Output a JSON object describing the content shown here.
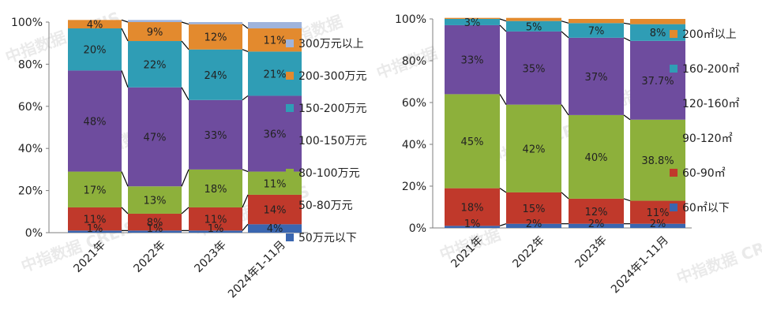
{
  "watermark": "中指数据 CREIS",
  "watermark_cn": "中指数据",
  "colors": {
    "c1": "#3A66B0",
    "c2": "#C0392B",
    "c3": "#8DB03B",
    "c4": "#6E4C9E",
    "c5": "#2F9DB5",
    "c6": "#E38A2E",
    "c7": "#9FB4DC",
    "axis": "#7f7f7f",
    "connector": "#000000"
  },
  "chart_data": [
    {
      "type": "bar",
      "stacked": true,
      "percent": true,
      "categories": [
        "2021年",
        "2022年",
        "2023年",
        "2024年1-11月"
      ],
      "yticks": [
        "0%",
        "20%",
        "40%",
        "60%",
        "80%",
        "100%"
      ],
      "ylim": [
        0,
        100
      ],
      "legend_position": "right",
      "series": [
        {
          "name": "50万元以下",
          "color": "#3A66B0",
          "values": [
            1,
            1,
            1,
            4
          ],
          "labels": [
            "1%",
            "1%",
            "1%",
            "4%"
          ]
        },
        {
          "name": "50-80万元",
          "color": "#C0392B",
          "values": [
            11,
            8,
            11,
            14
          ],
          "labels": [
            "11%",
            "8%",
            "11%",
            "14%"
          ]
        },
        {
          "name": "80-100万元",
          "color": "#8DB03B",
          "values": [
            17,
            13,
            18,
            11
          ],
          "labels": [
            "17%",
            "13%",
            "18%",
            "11%"
          ]
        },
        {
          "name": "100-150万元",
          "color": "#6E4C9E",
          "values": [
            48,
            47,
            33,
            36
          ],
          "labels": [
            "48%",
            "47%",
            "33%",
            "36%"
          ]
        },
        {
          "name": "150-200万元",
          "color": "#2F9DB5",
          "values": [
            20,
            22,
            24,
            21
          ],
          "labels": [
            "20%",
            "22%",
            "24%",
            "21%"
          ]
        },
        {
          "name": "200-300万元",
          "color": "#E38A2E",
          "values": [
            4,
            9,
            12,
            11
          ],
          "labels": [
            "4%",
            "9%",
            "12%",
            "11%"
          ]
        },
        {
          "name": "300万元以上",
          "color": "#9FB4DC",
          "values": [
            0,
            1,
            1,
            3
          ],
          "labels": [
            "",
            "",
            "",
            ""
          ]
        }
      ]
    },
    {
      "type": "bar",
      "stacked": true,
      "percent": true,
      "categories": [
        "2021年",
        "2022年",
        "2023年",
        "2024年1-11月"
      ],
      "yticks": [
        "0%",
        "20%",
        "40%",
        "60%",
        "80%",
        "100%"
      ],
      "ylim": [
        0,
        100
      ],
      "legend_position": "right",
      "series": [
        {
          "name": "60㎡以下",
          "color": "#3A66B0",
          "values": [
            1,
            2,
            2,
            2
          ],
          "labels": [
            "1%",
            "2%",
            "2%",
            "2%"
          ]
        },
        {
          "name": "60-90㎡",
          "color": "#C0392B",
          "values": [
            18,
            15,
            12,
            11
          ],
          "labels": [
            "18%",
            "15%",
            "12%",
            "11%"
          ]
        },
        {
          "name": "90-120㎡",
          "color": "#8DB03B",
          "values": [
            45,
            42,
            40,
            38.8
          ],
          "labels": [
            "45%",
            "42%",
            "40%",
            "38.8%"
          ]
        },
        {
          "name": "120-160㎡",
          "color": "#6E4C9E",
          "values": [
            33,
            35,
            37,
            37.7
          ],
          "labels": [
            "33%",
            "35%",
            "37%",
            "37.7%"
          ]
        },
        {
          "name": "160-200㎡",
          "color": "#2F9DB5",
          "values": [
            3,
            5,
            7,
            8
          ],
          "labels": [
            "3%",
            "5%",
            "7%",
            "8%"
          ]
        },
        {
          "name": "200㎡以上",
          "color": "#E38A2E",
          "values": [
            0.5,
            1.5,
            2,
            2.5
          ],
          "labels": [
            "",
            "",
            "",
            ""
          ]
        }
      ]
    }
  ]
}
